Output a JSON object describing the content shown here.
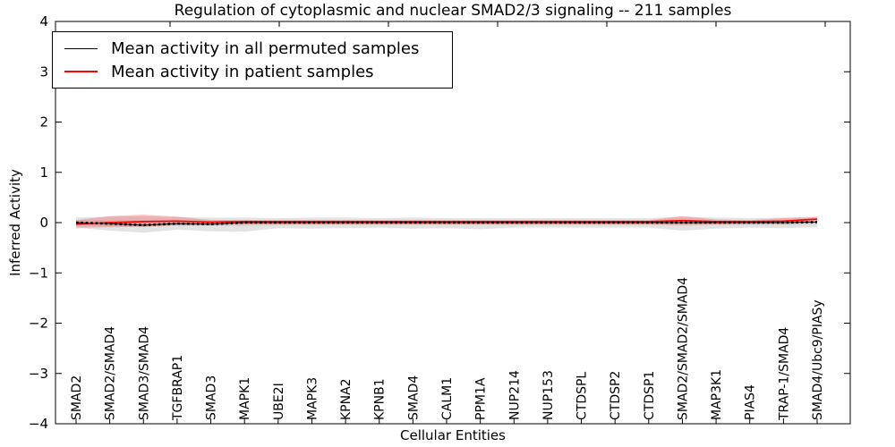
{
  "figure": {
    "background": "#ffffff",
    "frame_color": "#000000"
  },
  "legend": {
    "items": [
      {
        "label": "Mean activity in all permuted samples",
        "color": "#000000",
        "line_width": 1
      },
      {
        "label": "Mean activity in patient samples",
        "color": "#ff0000",
        "line_width": 2
      }
    ]
  },
  "chart_data": {
    "type": "line",
    "title": "Regulation of cytoplasmic and nuclear SMAD2/3 signaling -- 211 samples",
    "xlabel": "Cellular Entities",
    "ylabel": "Inferred Activity",
    "ylim": [
      -4,
      4
    ],
    "yticks": [
      4,
      3,
      2,
      1,
      0,
      -1,
      -2,
      -3,
      -4
    ],
    "ytick_labels": [
      "4",
      "3",
      "2",
      "1",
      "0",
      "−1",
      "−2",
      "−3",
      "−4"
    ],
    "grid": false,
    "legend_position": "upper left",
    "x_tick_labels_rotation": 90,
    "categories": [
      "SMAD2",
      "SMAD2/SMAD4",
      "SMAD3/SMAD4",
      "TGFBRAP1",
      "SMAD3",
      "MAPK1",
      "UBE2I",
      "MAPK3",
      "KPNA2",
      "KPNB1",
      "SMAD4",
      "CALM1",
      "PPM1A",
      "NUP214",
      "NUP153",
      "CTDSPL",
      "CTDSP2",
      "CTDSP1",
      "SMAD2/SMAD2/SMAD4",
      "MAP3K1",
      "PIAS4",
      "TRAP-1/SMAD4",
      "SMAD4/Ubc9/PIASy"
    ],
    "series": [
      {
        "name": "Mean activity in all permuted samples",
        "color": "#000000",
        "style": "solid-with-dash-markers",
        "values": [
          0.0,
          -0.02,
          -0.05,
          -0.02,
          -0.03,
          0.0,
          0.0,
          0.0,
          0.0,
          0.0,
          0.0,
          0.0,
          0.0,
          0.0,
          0.0,
          0.0,
          0.0,
          0.0,
          0.0,
          0.0,
          0.0,
          0.0,
          0.01
        ],
        "band_upper": [
          0.1,
          0.12,
          0.13,
          0.11,
          0.1,
          0.1,
          0.09,
          0.1,
          0.1,
          0.09,
          0.1,
          0.09,
          0.09,
          0.09,
          0.09,
          0.09,
          0.09,
          0.09,
          0.12,
          0.1,
          0.09,
          0.1,
          0.1
        ],
        "band_lower": [
          -0.1,
          -0.16,
          -0.2,
          -0.14,
          -0.17,
          -0.18,
          -0.11,
          -0.12,
          -0.11,
          -0.1,
          -0.12,
          -0.11,
          -0.13,
          -0.1,
          -0.1,
          -0.1,
          -0.1,
          -0.1,
          -0.16,
          -0.12,
          -0.1,
          -0.11,
          -0.09
        ],
        "band2_upper": [
          0.05,
          0.05,
          0.05,
          0.05,
          0.05,
          0.05,
          0.04,
          0.05,
          0.05,
          0.04,
          0.05,
          0.04,
          0.04,
          0.04,
          0.04,
          0.04,
          0.04,
          0.04,
          0.05,
          0.05,
          0.04,
          0.05,
          0.05
        ],
        "band2_lower": [
          -0.05,
          -0.07,
          -0.09,
          -0.06,
          -0.07,
          -0.07,
          -0.05,
          -0.05,
          -0.05,
          -0.05,
          -0.05,
          -0.05,
          -0.05,
          -0.05,
          -0.05,
          -0.05,
          -0.05,
          -0.05,
          -0.07,
          -0.05,
          -0.05,
          -0.05,
          -0.04
        ],
        "band_color": "#c0c0c0",
        "band_opacity": 0.45
      },
      {
        "name": "Mean activity in patient samples",
        "color": "#ff0000",
        "style": "solid",
        "values": [
          -0.03,
          0.0,
          0.02,
          0.03,
          0.01,
          0.02,
          0.02,
          0.02,
          0.02,
          0.02,
          0.02,
          0.02,
          0.02,
          0.02,
          0.02,
          0.02,
          0.02,
          0.02,
          0.04,
          0.02,
          0.02,
          0.03,
          0.07
        ],
        "band_upper": [
          0.05,
          0.13,
          0.16,
          0.12,
          0.05,
          0.05,
          0.05,
          0.05,
          0.05,
          0.05,
          0.05,
          0.05,
          0.05,
          0.05,
          0.05,
          0.05,
          0.05,
          0.05,
          0.13,
          0.06,
          0.05,
          0.09,
          0.12
        ],
        "band_lower": [
          -0.1,
          -0.09,
          -0.08,
          -0.05,
          -0.04,
          -0.03,
          -0.03,
          -0.03,
          -0.03,
          -0.03,
          -0.03,
          -0.03,
          -0.03,
          -0.03,
          -0.03,
          -0.03,
          -0.03,
          -0.03,
          -0.04,
          -0.03,
          -0.02,
          -0.02,
          0.01
        ],
        "band_color": "#ff0000",
        "band_opacity": 0.22
      }
    ]
  }
}
